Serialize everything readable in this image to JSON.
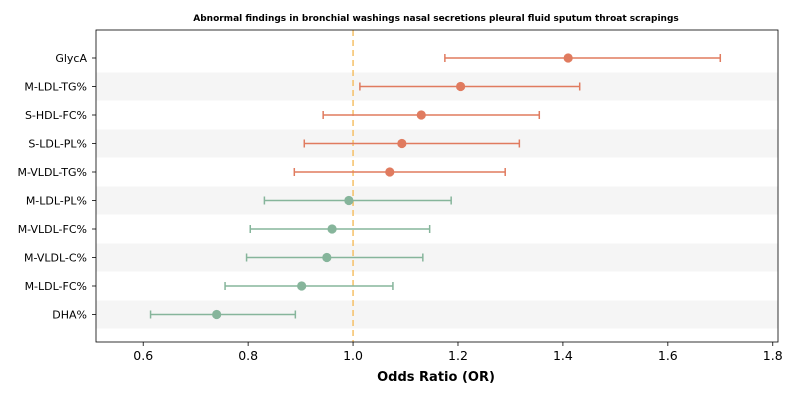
{
  "chart_data": {
    "type": "forest",
    "title": "Abnormal findings in bronchial washings nasal secretions pleural fluid sputum throat scrapings",
    "xlabel": "Odds Ratio (OR)",
    "xlim": [
      0.51,
      1.81
    ],
    "xticks": [
      "0.6",
      "0.8",
      "1.0",
      "1.2",
      "1.4",
      "1.6",
      "1.8"
    ],
    "reference_line": 1.0,
    "grid": false,
    "colors": {
      "positive": "#e07b5f",
      "negative": "#86b59b",
      "reference": "#f5c067",
      "band": "#f5f5f5"
    },
    "rows": [
      {
        "label": "GlycA",
        "or": 1.41,
        "lower": 1.175,
        "upper": 1.7,
        "direction": "positive"
      },
      {
        "label": "M-LDL-TG%",
        "or": 1.205,
        "lower": 1.013,
        "upper": 1.432,
        "direction": "positive"
      },
      {
        "label": "S-HDL-FC%",
        "or": 1.13,
        "lower": 0.943,
        "upper": 1.355,
        "direction": "positive"
      },
      {
        "label": "S-LDL-PL%",
        "or": 1.093,
        "lower": 0.907,
        "upper": 1.317,
        "direction": "positive"
      },
      {
        "label": "M-VLDL-TG%",
        "or": 1.07,
        "lower": 0.888,
        "upper": 1.29,
        "direction": "positive"
      },
      {
        "label": "M-LDL-PL%",
        "or": 0.992,
        "lower": 0.831,
        "upper": 1.187,
        "direction": "negative"
      },
      {
        "label": "M-VLDL-FC%",
        "or": 0.96,
        "lower": 0.804,
        "upper": 1.146,
        "direction": "negative"
      },
      {
        "label": "M-VLDL-C%",
        "or": 0.95,
        "lower": 0.797,
        "upper": 1.133,
        "direction": "negative"
      },
      {
        "label": "M-LDL-FC%",
        "or": 0.902,
        "lower": 0.756,
        "upper": 1.076,
        "direction": "negative"
      },
      {
        "label": "DHA%",
        "or": 0.74,
        "lower": 0.614,
        "upper": 0.89,
        "direction": "negative"
      }
    ]
  }
}
